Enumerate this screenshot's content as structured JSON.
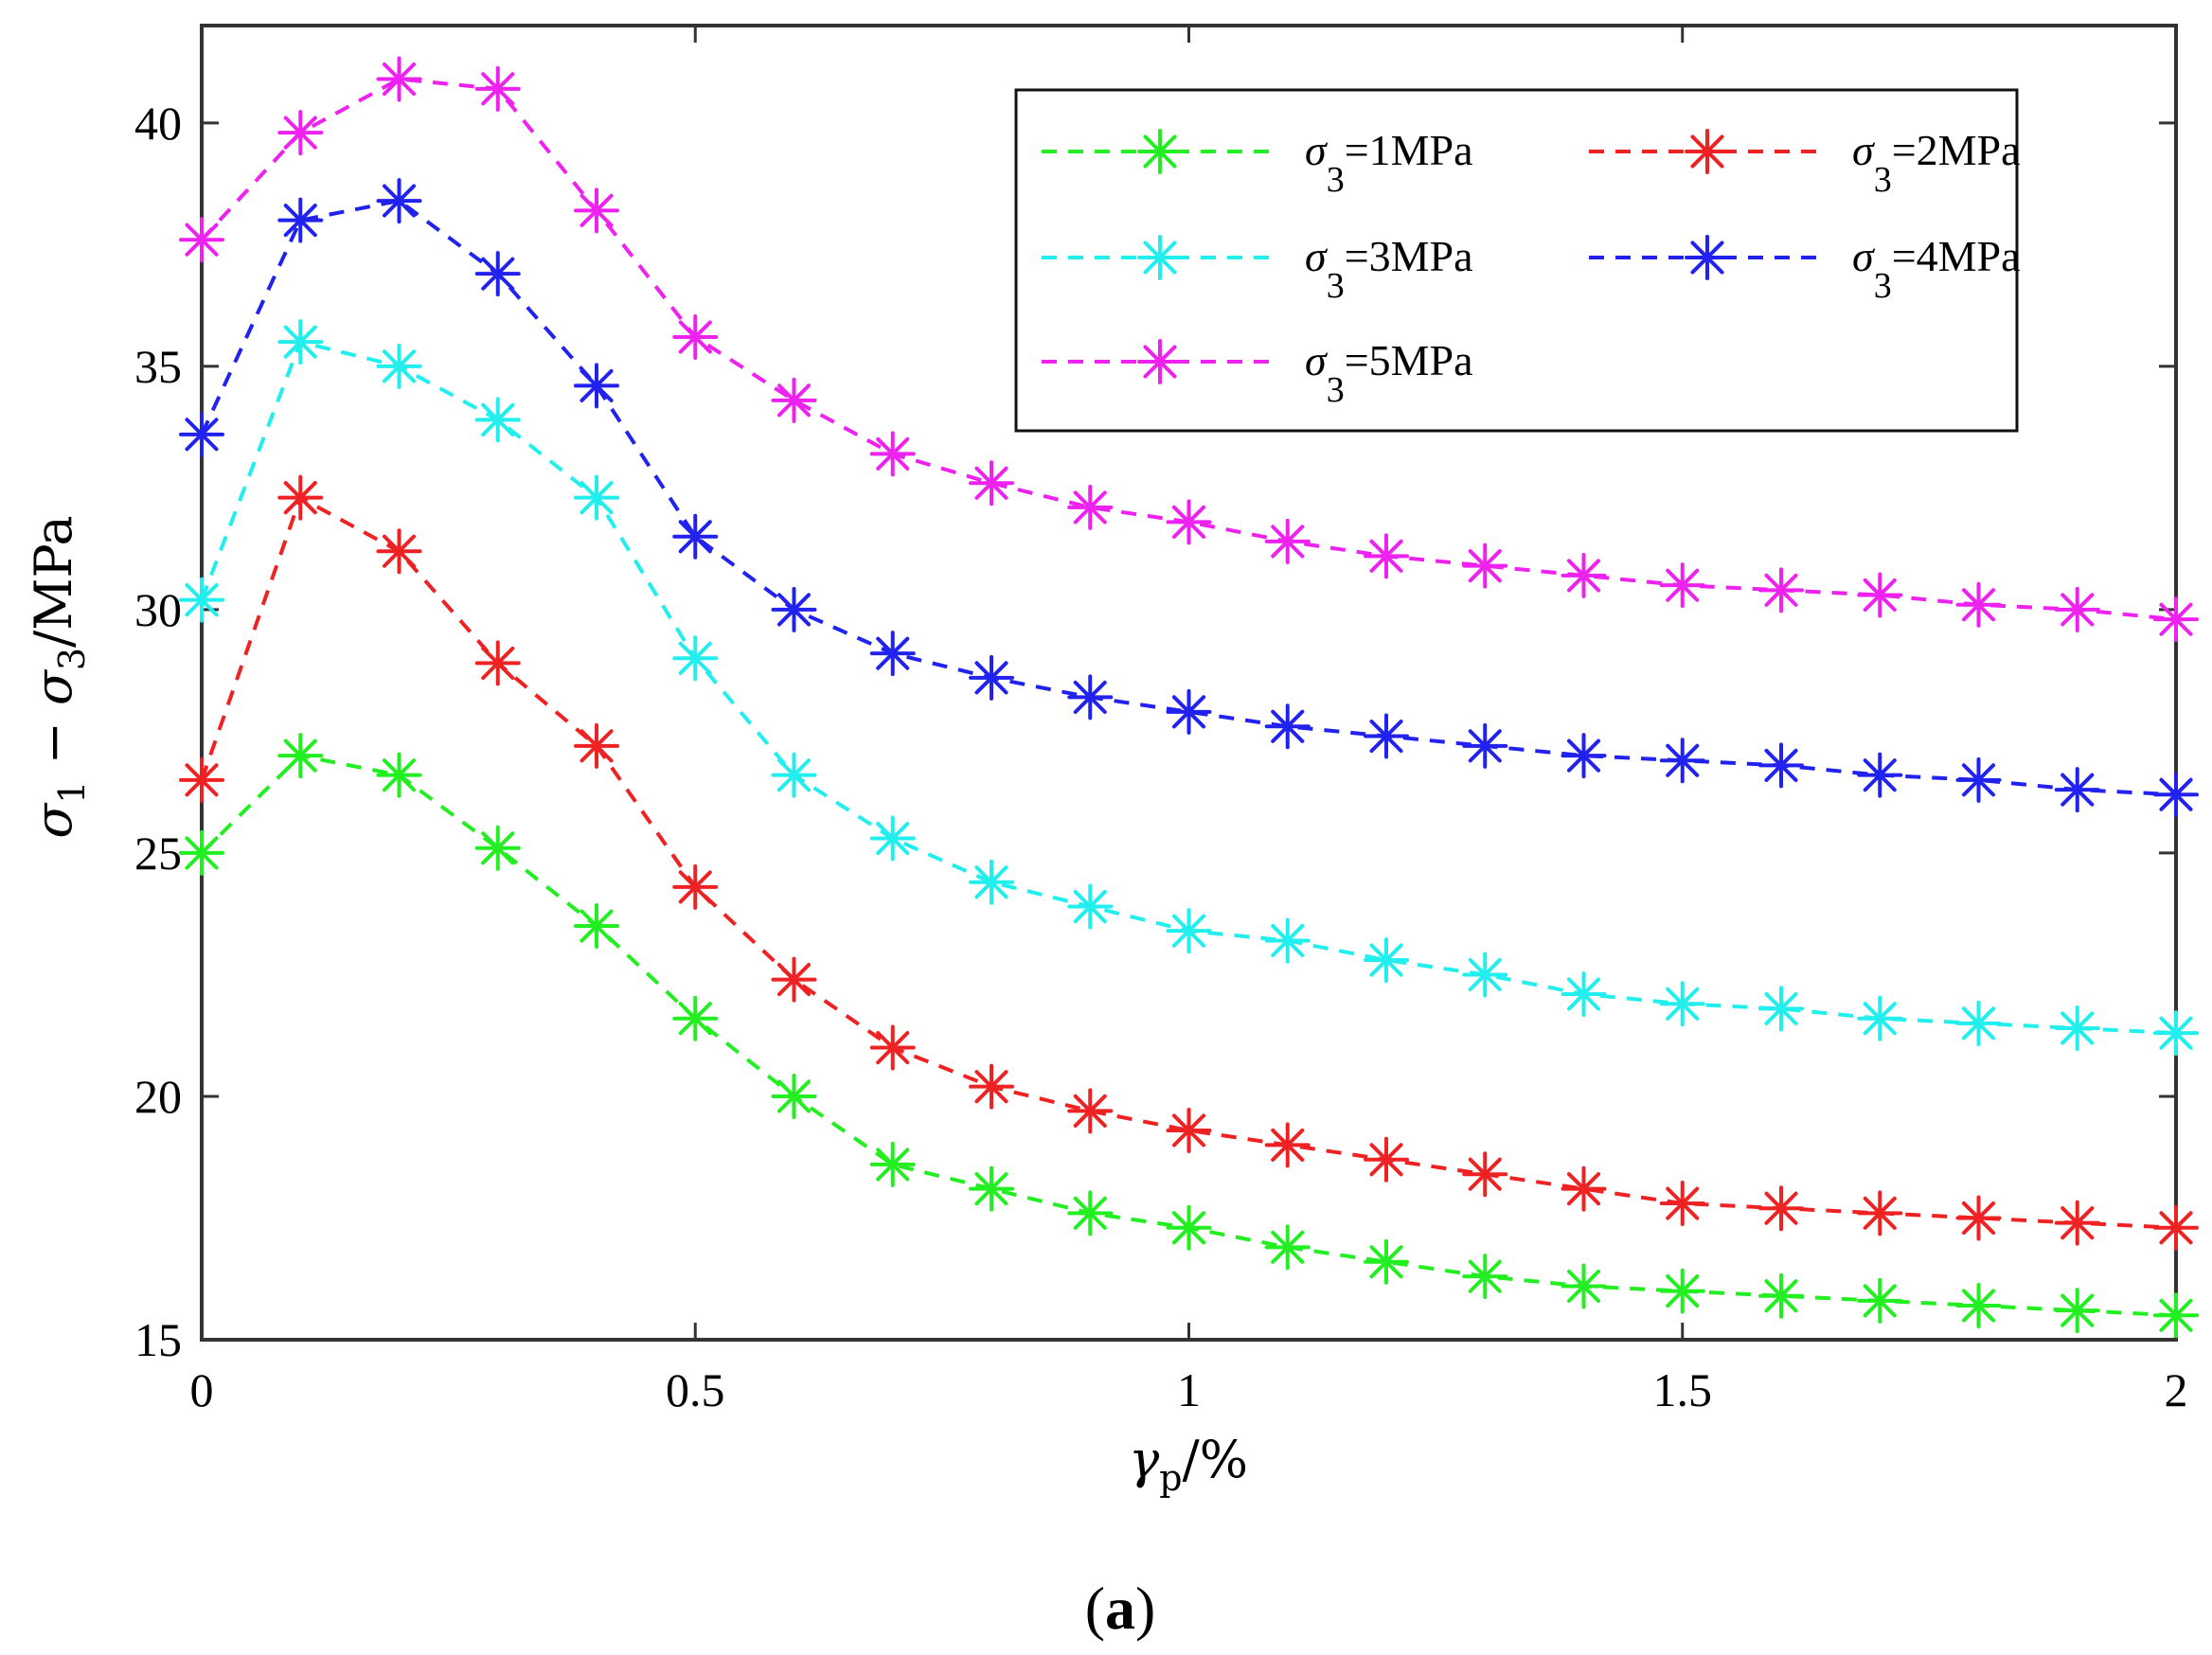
{
  "caption": {
    "open": "(",
    "letter": "a",
    "close": ")"
  },
  "chart_data": {
    "type": "line",
    "title": "",
    "xlabel": {
      "symbol": "γ",
      "subscript": "p",
      "suffix": "/%"
    },
    "ylabel": {
      "s1": "σ",
      "s1_sub": "1",
      "minus": " − ",
      "s3": "σ",
      "s3_sub": "3",
      "suffix": "/MPa"
    },
    "xlim": [
      0,
      2
    ],
    "ylim": [
      15,
      42
    ],
    "xticks": [
      0,
      0.5,
      1,
      1.5,
      2
    ],
    "xtick_labels": [
      "0",
      "0.5",
      "1",
      "1.5",
      "2"
    ],
    "yticks": [
      15,
      20,
      25,
      30,
      35,
      40
    ],
    "ytick_labels": [
      "15",
      "20",
      "25",
      "30",
      "35",
      "40"
    ],
    "grid": false,
    "legend_position": "top-right",
    "marker": "asterisk",
    "line_style": "dashed",
    "x": [
      0,
      0.1,
      0.2,
      0.3,
      0.4,
      0.5,
      0.6,
      0.7,
      0.8,
      0.9,
      1.0,
      1.1,
      1.2,
      1.3,
      1.4,
      1.5,
      1.6,
      1.7,
      1.8,
      1.9,
      2.0
    ],
    "series": [
      {
        "name": "σ3=1MPa",
        "legend_symbol": "σ",
        "legend_sub": "3",
        "legend_value": "=1MPa",
        "color": "#22ee22",
        "values": [
          25.0,
          27.0,
          26.6,
          25.1,
          23.5,
          21.6,
          20.0,
          18.6,
          18.1,
          17.6,
          17.3,
          16.9,
          16.6,
          16.3,
          16.1,
          16.0,
          15.9,
          15.8,
          15.7,
          15.6,
          15.5
        ]
      },
      {
        "name": "σ3=2MPa",
        "legend_symbol": "σ",
        "legend_sub": "3",
        "legend_value": "=2MPa",
        "color": "#ee2222",
        "values": [
          26.5,
          32.3,
          31.2,
          28.9,
          27.2,
          24.3,
          22.4,
          21.0,
          20.2,
          19.7,
          19.3,
          19.0,
          18.7,
          18.4,
          18.1,
          17.8,
          17.7,
          17.6,
          17.5,
          17.4,
          17.3
        ]
      },
      {
        "name": "σ3=3MPa",
        "legend_symbol": "σ",
        "legend_sub": "3",
        "legend_value": "=3MPa",
        "color": "#22eeee",
        "values": [
          30.2,
          35.5,
          35.0,
          33.9,
          32.3,
          29.0,
          26.6,
          25.3,
          24.4,
          23.9,
          23.4,
          23.2,
          22.8,
          22.5,
          22.1,
          21.9,
          21.8,
          21.6,
          21.5,
          21.4,
          21.3
        ]
      },
      {
        "name": "σ3=4MPa",
        "legend_symbol": "σ",
        "legend_sub": "3",
        "legend_value": "=4MPa",
        "color": "#2222ee",
        "values": [
          33.6,
          38.0,
          38.4,
          36.9,
          34.6,
          31.5,
          30.0,
          29.1,
          28.6,
          28.2,
          27.9,
          27.6,
          27.4,
          27.2,
          27.0,
          26.9,
          26.8,
          26.6,
          26.5,
          26.3,
          26.2
        ]
      },
      {
        "name": "σ3=5MPa",
        "legend_symbol": "σ",
        "legend_sub": "3",
        "legend_value": "=5MPa",
        "color": "#ee22ee",
        "values": [
          37.6,
          39.8,
          40.9,
          40.7,
          38.2,
          35.6,
          34.3,
          33.2,
          32.6,
          32.1,
          31.8,
          31.4,
          31.1,
          30.9,
          30.7,
          30.5,
          30.4,
          30.3,
          30.1,
          30.0,
          29.8
        ]
      }
    ]
  }
}
